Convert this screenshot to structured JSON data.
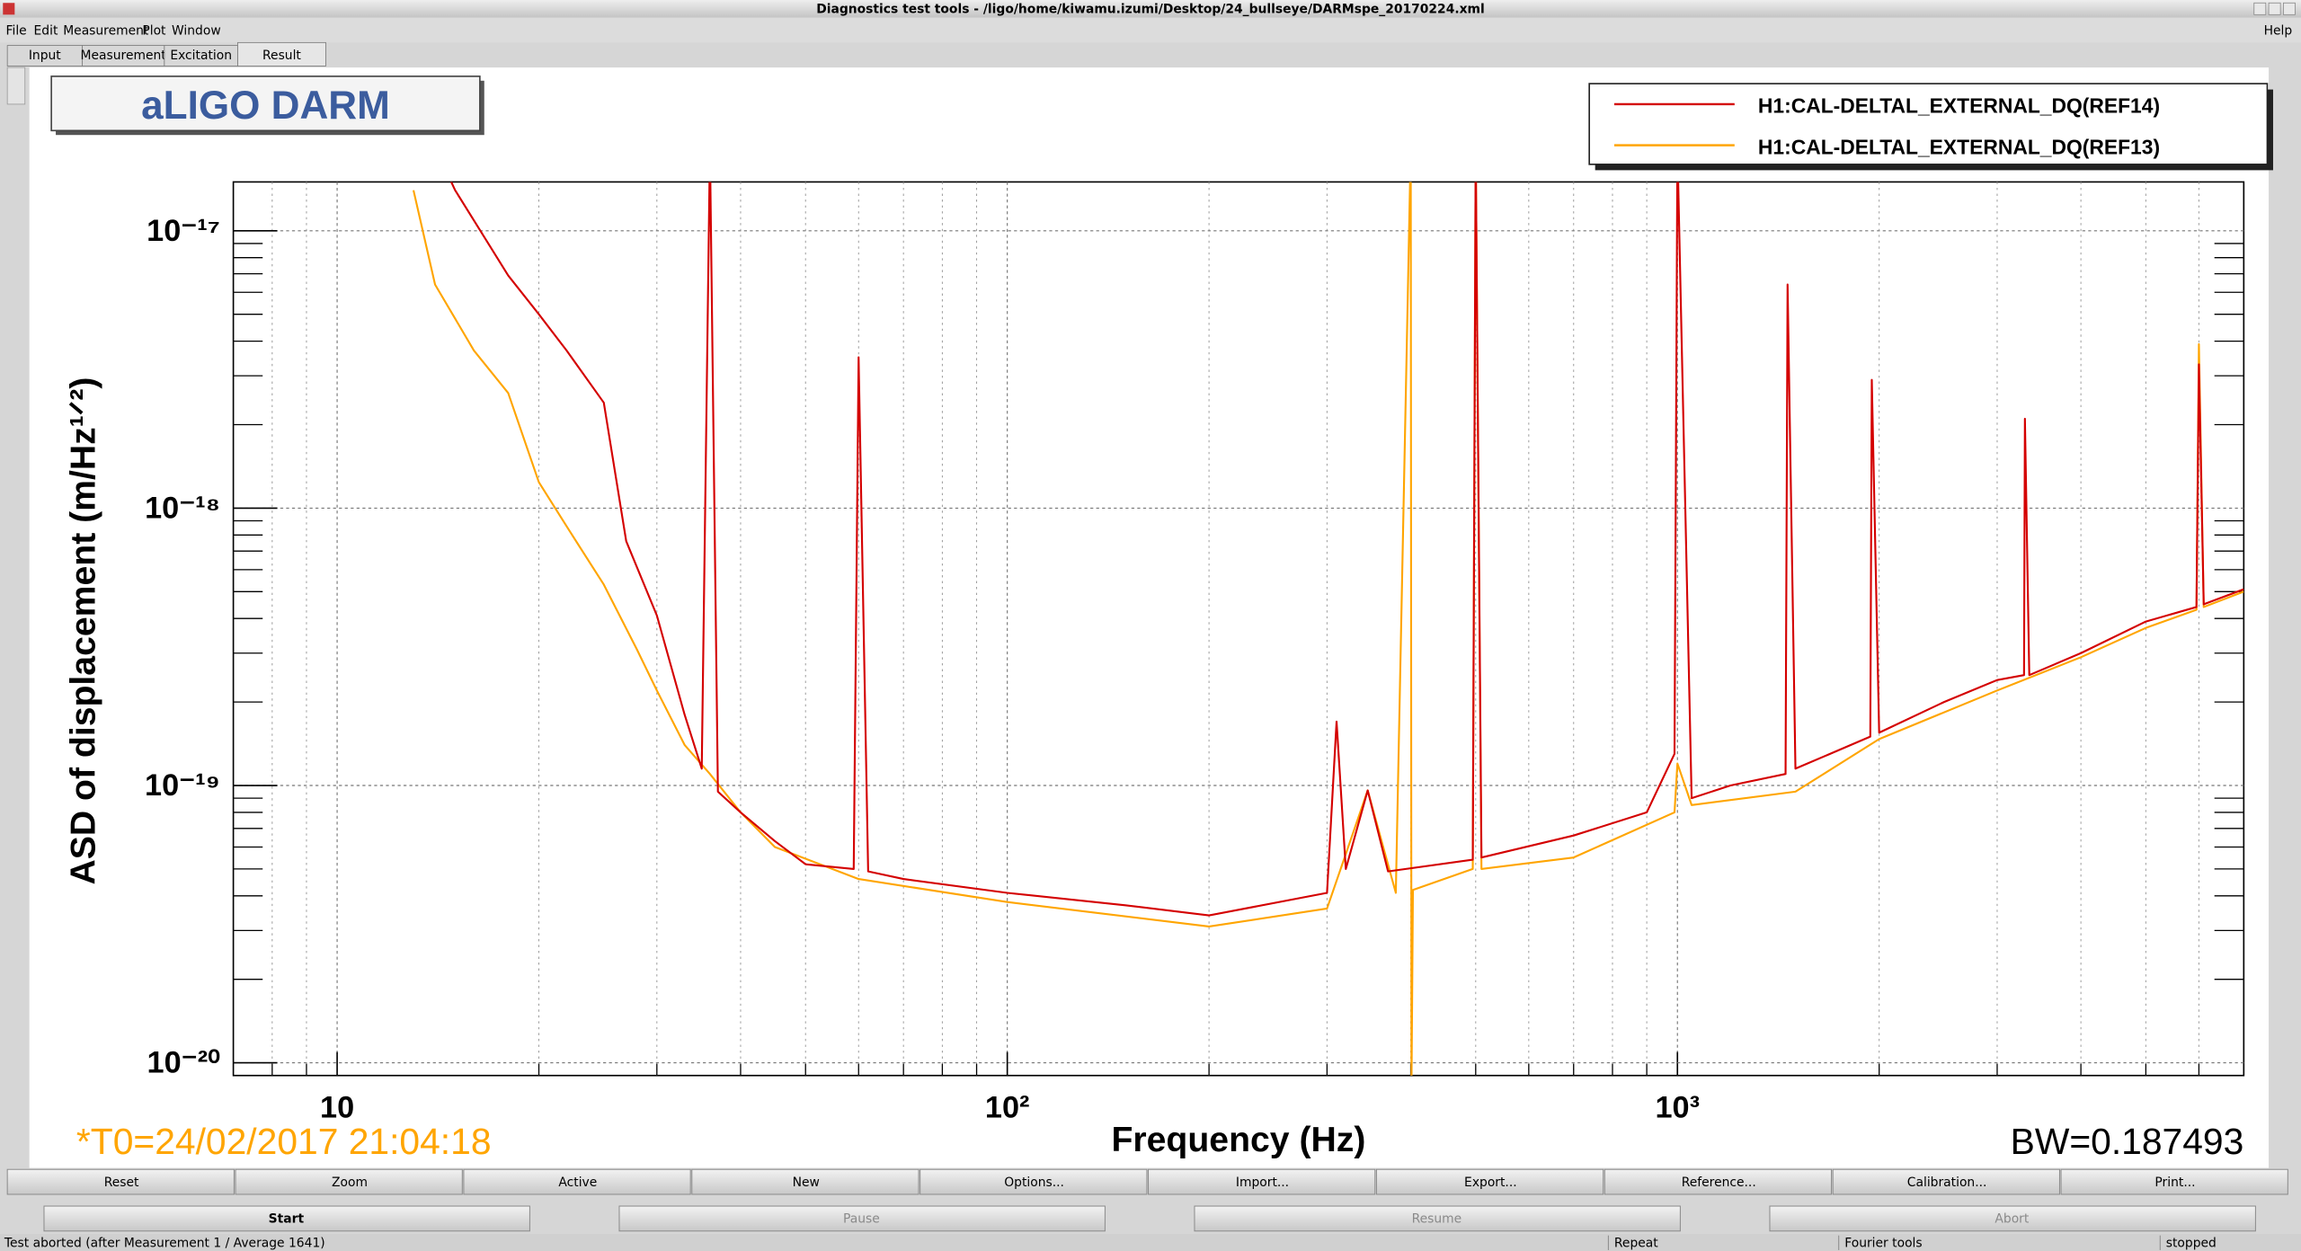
{
  "window": {
    "title": "Diagnostics test tools - /ligo/home/kiwamu.izumi/Desktop/24_bullseye/DARMspe_20170224.xml",
    "menu": [
      "File",
      "Edit",
      "Measurement",
      "Plot",
      "Window"
    ],
    "help": "Help"
  },
  "tabs": [
    {
      "label": "Input",
      "active": false
    },
    {
      "label": "Measurement",
      "active": false
    },
    {
      "label": "Excitation",
      "active": false
    },
    {
      "label": "Result",
      "active": true
    }
  ],
  "panel": {
    "title": "aLIGO DARM",
    "t0": "*T0=24/02/2017 21:04:18",
    "bw": "BW=0.187493"
  },
  "chart_data": {
    "type": "line",
    "x_label": "Frequency (Hz)",
    "y_label": "ASD of displacement (m/Hz¹ᐟ²)",
    "xscale": "log",
    "yscale": "log",
    "xlim": [
      7,
      7000
    ],
    "ylim": [
      9e-21,
      1.5e-17
    ],
    "xticks": [
      {
        "value": 10,
        "label": "10"
      },
      {
        "value": 100,
        "label": "10²"
      },
      {
        "value": 1000,
        "label": "10³"
      }
    ],
    "yticks": [
      {
        "value": 1e-20,
        "label": "10⁻²⁰"
      },
      {
        "value": 1e-19,
        "label": "10⁻¹⁹"
      },
      {
        "value": 1e-18,
        "label": "10⁻¹⁸"
      },
      {
        "value": 1e-17,
        "label": "10⁻¹⁷"
      }
    ],
    "xminorticks": [
      8,
      9,
      20,
      30,
      40,
      50,
      60,
      70,
      80,
      90,
      200,
      300,
      400,
      500,
      600,
      700,
      800,
      900,
      2000,
      3000,
      4000,
      5000,
      6000
    ],
    "yminorticks": [
      2e-20,
      3e-20,
      4e-20,
      5e-20,
      6e-20,
      7e-20,
      8e-20,
      9e-20,
      2e-19,
      3e-19,
      4e-19,
      5e-19,
      6e-19,
      7e-19,
      8e-19,
      9e-19,
      2e-18,
      3e-18,
      4e-18,
      5e-18,
      6e-18,
      7e-18,
      8e-18,
      9e-18
    ],
    "grid": true,
    "legend": "upper right",
    "series": [
      {
        "name": "H1:CAL-DELTAL_EXTERNAL_DQ(REF14)",
        "color": "#d40000",
        "x": [
          14,
          15,
          18,
          20,
          22,
          25,
          27,
          30,
          33,
          35,
          36,
          37,
          40,
          45,
          50,
          59,
          60,
          62,
          70,
          100,
          150,
          200,
          300,
          310,
          320,
          345,
          370,
          495,
          500,
          510,
          700,
          900,
          990,
          1000,
          1050,
          1200,
          1450,
          1460,
          1500,
          1940,
          1950,
          2000,
          2500,
          3000,
          3290,
          3300,
          3350,
          4000,
          5000,
          5950,
          6000,
          6100,
          7000
        ],
        "values": [
          2e-17,
          1.4e-17,
          6.9e-18,
          5e-18,
          3.7e-18,
          2.4e-18,
          7.6e-19,
          4.1e-19,
          1.8e-19,
          1.15e-19,
          2e-17,
          9.5e-20,
          8e-20,
          6.3e-20,
          5.2e-20,
          5e-20,
          3.5e-18,
          4.9e-20,
          4.6e-20,
          4.1e-20,
          3.7e-20,
          3.4e-20,
          4.1e-20,
          1.7e-19,
          5e-20,
          9.6e-20,
          4.9e-20,
          5.4e-20,
          2e-17,
          5.5e-20,
          6.6e-20,
          8e-20,
          1.3e-19,
          2e-17,
          9e-20,
          1e-19,
          1.1e-19,
          6.4e-18,
          1.15e-19,
          1.5e-19,
          2.9e-18,
          1.55e-19,
          2e-19,
          2.4e-19,
          2.5e-19,
          2.1e-18,
          2.5e-19,
          3e-19,
          3.9e-19,
          4.4e-19,
          3.3e-18,
          4.5e-19,
          5.1e-19
        ]
      },
      {
        "name": "H1:CAL-DELTAL_EXTERNAL_DQ(REF13)",
        "color": "#ffa500",
        "x": [
          13,
          14,
          16,
          18,
          20,
          22,
          25,
          28,
          30,
          33,
          36,
          40,
          45,
          60,
          100,
          200,
          300,
          345,
          380,
          400,
          401,
          403,
          495,
          500,
          510,
          700,
          990,
          1000,
          1050,
          1500,
          2000,
          3000,
          4000,
          5000,
          5950,
          6000,
          6100,
          7000
        ],
        "values": [
          1.4e-17,
          6.4e-18,
          3.7e-18,
          2.6e-18,
          1.24e-18,
          8.6e-19,
          5.3e-19,
          3.1e-19,
          2.2e-19,
          1.4e-19,
          1.1e-19,
          8e-20,
          6e-20,
          4.6e-20,
          3.8e-20,
          3.1e-20,
          3.6e-20,
          9.6e-20,
          4.1e-20,
          2e-17,
          8e-21,
          4.2e-20,
          5e-20,
          2e-17,
          5e-20,
          5.5e-20,
          8e-20,
          1.2e-19,
          8.5e-20,
          9.5e-20,
          1.47e-19,
          2.2e-19,
          2.9e-19,
          3.7e-19,
          4.3e-19,
          3.9e-18,
          4.4e-19,
          5e-19
        ]
      }
    ]
  },
  "buttons": [
    "Reset",
    "Zoom",
    "Active",
    "New",
    "Options...",
    "Import...",
    "Export...",
    "Reference...",
    "Calibration...",
    "Print..."
  ],
  "controls": [
    {
      "label": "Start",
      "enabled": true
    },
    {
      "label": "Pause",
      "enabled": false
    },
    {
      "label": "Resume",
      "enabled": false
    },
    {
      "label": "Abort",
      "enabled": false
    }
  ],
  "status": [
    "Test aborted (after Measurement 1 / Average 1641)",
    "Repeat",
    "Fourier tools",
    "stopped"
  ]
}
